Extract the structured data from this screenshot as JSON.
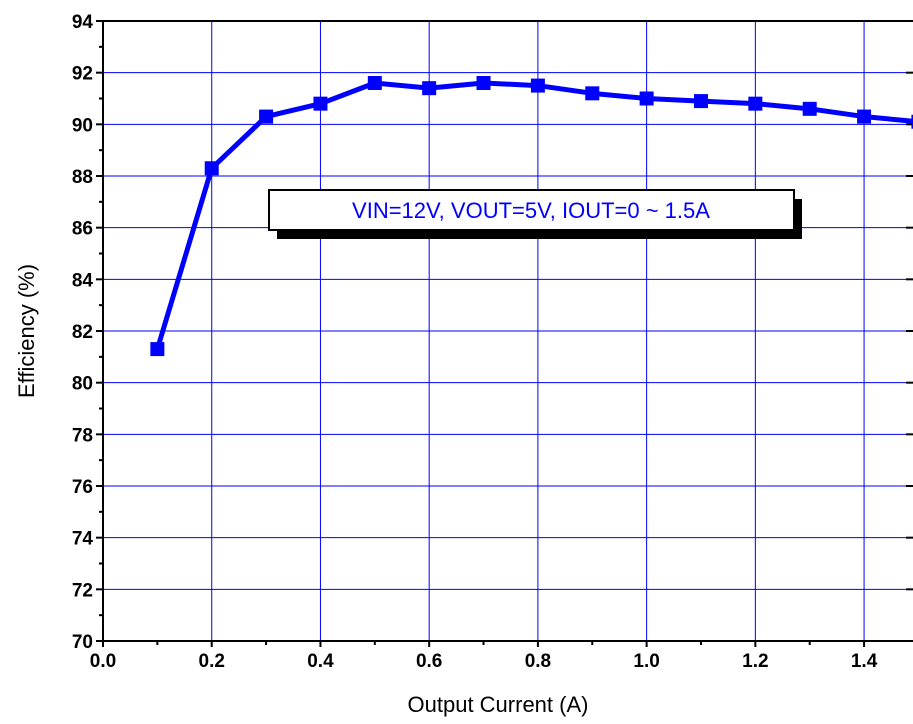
{
  "chart_data": {
    "type": "line",
    "title": "",
    "xlabel": "Output Current (A)",
    "ylabel": "Efficiency (%)",
    "xlim": [
      0.0,
      1.49
    ],
    "ylim": [
      70,
      94
    ],
    "x_ticks": [
      "0.0",
      "0.2",
      "0.4",
      "0.6",
      "0.8",
      "1.0",
      "1.2",
      "1.4"
    ],
    "y_ticks": [
      "70",
      "72",
      "74",
      "76",
      "78",
      "80",
      "82",
      "84",
      "86",
      "88",
      "90",
      "92",
      "94"
    ],
    "grid": true,
    "series": [
      {
        "x": [
          0.1,
          0.2,
          0.3,
          0.4,
          0.5,
          0.6,
          0.7,
          0.8,
          0.9,
          1.0,
          1.1,
          1.2,
          1.3,
          1.4,
          1.5
        ],
        "y": [
          81.3,
          88.3,
          90.3,
          90.8,
          91.6,
          91.4,
          91.6,
          91.5,
          91.2,
          91.0,
          90.9,
          90.8,
          90.6,
          90.3,
          90.1
        ],
        "color": "#0000ff",
        "marker": "square"
      }
    ],
    "annotations": [
      {
        "text": "VIN=12V, VOUT=5V, IOUT=0 ~ 1.5A"
      }
    ],
    "colors": {
      "grid": "#0000ff",
      "series": "#0000ff",
      "axis": "#000000",
      "annotation_text": "#0000ff"
    }
  }
}
